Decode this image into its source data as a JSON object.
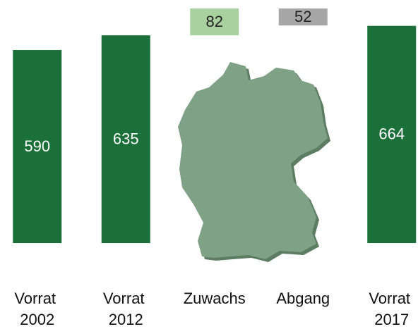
{
  "chart_data": {
    "type": "waterfall",
    "categories": [
      "Vorrat 2002",
      "Vorrat 2012",
      "Zuwachs",
      "Abgang",
      "Vorrat 2017"
    ],
    "values": [
      590,
      635,
      82,
      52,
      664
    ],
    "bar_kinds": [
      "total",
      "total",
      "increase",
      "decrease",
      "total"
    ],
    "colors": [
      "#1a7038",
      "#1a7038",
      "#a9d19f",
      "#a6a6a6",
      "#1a7038"
    ],
    "ylim": [
      0,
      743
    ]
  }
}
